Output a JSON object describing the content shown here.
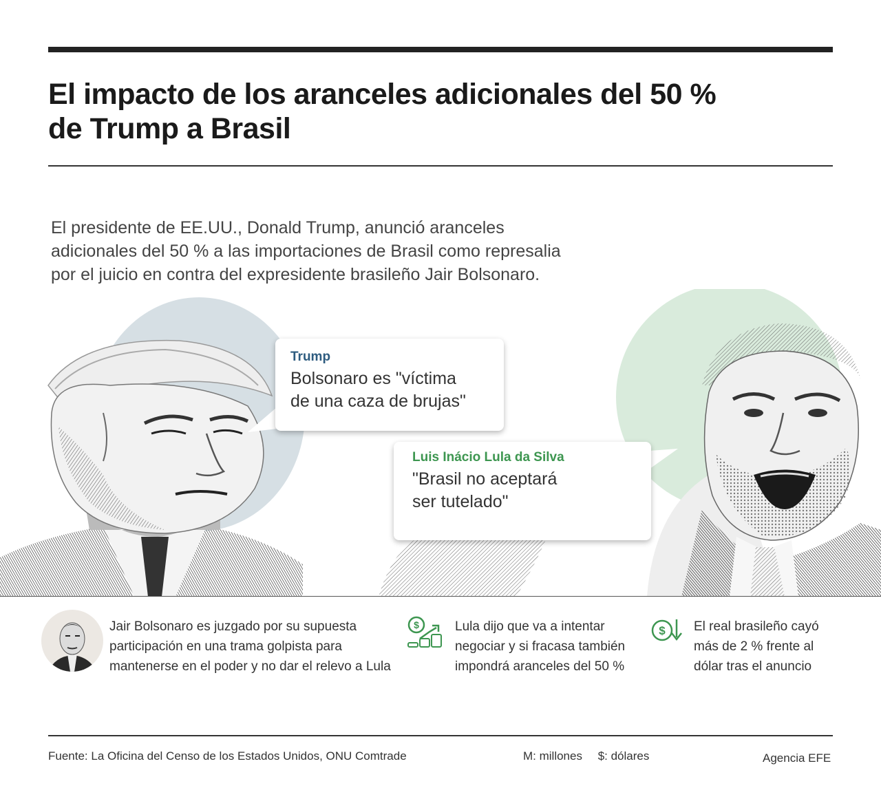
{
  "header": {
    "title_line1": "El impacto de los aranceles adicionales del 50 %",
    "title_line2": "de Trump a Brasil"
  },
  "intro": {
    "line1": "El presidente de EE.UU., Donald Trump, anunció aranceles",
    "line2": "adicionales del 50 % a las importaciones de Brasil como represalia",
    "line3": "por el juicio en contra del expresidente brasileño Jair Bolsonaro."
  },
  "quotes": {
    "trump": {
      "speaker": "Trump",
      "line1": "Bolsonaro es \"víctima",
      "line2": "de una caza de brujas\""
    },
    "lula": {
      "speaker": "Luis Inácio Lula da Silva",
      "line1": "\"Brasil no aceptará",
      "line2": "ser tutelado\""
    }
  },
  "facts": [
    {
      "icon": "bolsonaro-portrait",
      "line1": "Jair Bolsonaro es juzgado por su supuesta",
      "line2": "participación en una trama golpista para",
      "line3": "mantenerse en el poder y no dar el relevo a Lula"
    },
    {
      "icon": "money-growth-icon",
      "line1": "Lula dijo que va a intentar",
      "line2": "negociar y si fracasa también",
      "line3": "impondrá aranceles del 50 %"
    },
    {
      "icon": "currency-down-icon",
      "line1": "El real brasileño cayó",
      "line2": "más de 2 % frente al",
      "line3": "dólar tras el anuncio"
    }
  ],
  "footer": {
    "source": "Fuente: La Oficina del Censo de los Estados Unidos, ONU Comtrade",
    "unit_m": "M: millones",
    "unit_dollar": "$: dólares",
    "agency": "Agencia EFE"
  },
  "colors": {
    "trump_accent": "#2d5b7f",
    "lula_accent": "#3d9650",
    "trump_circle": "#d6dfe4",
    "lula_circle": "#d9ebdc"
  }
}
